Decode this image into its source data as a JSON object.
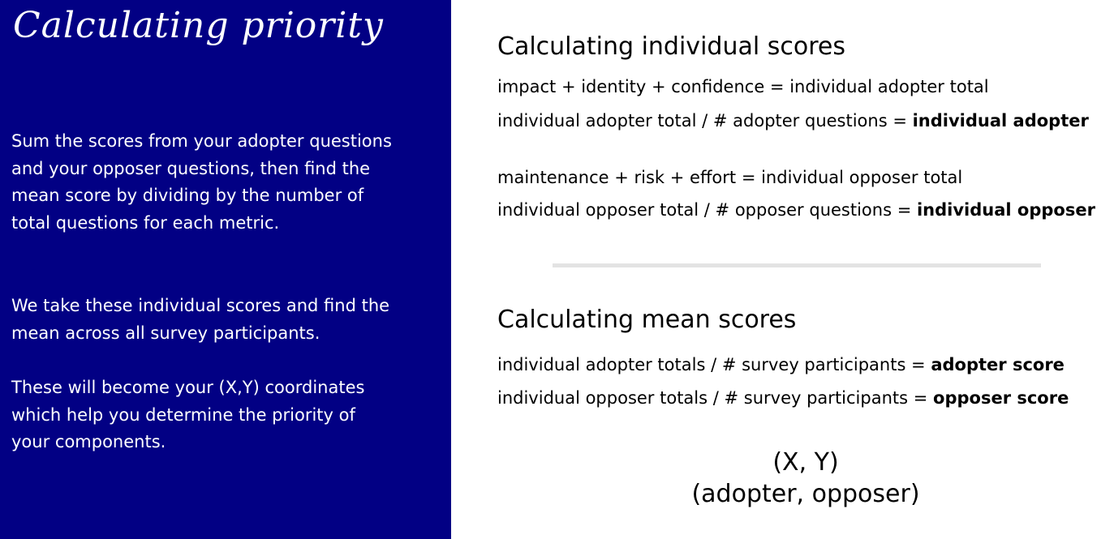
{
  "left_panel": {
    "title": "Calculating priority",
    "paragraphs": [
      "Sum the scores from your adopter questions and your opposer questions, then find the mean score by dividing by the number of total questions for each metric.",
      "We take these individual scores and find the mean across all survey participants.",
      "These will become your (X,Y) coordinates which help you determine the priority of your components."
    ]
  },
  "individual_scores": {
    "heading": "Calculating individual scores",
    "adopter_total_formula": "impact + identity + confidence = individual adopter total",
    "adopter_formula_prefix": "individual adopter total / # adopter questions = ",
    "adopter_formula_result": "individual adopter",
    "opposer_total_formula": "maintenance + risk + effort = individual opposer total",
    "opposer_formula_prefix": "individual opposer total / # opposer questions = ",
    "opposer_formula_result": "individual opposer"
  },
  "mean_scores": {
    "heading": "Calculating mean scores",
    "adopter_formula_prefix": "individual adopter totals / # survey participants = ",
    "adopter_formula_result": "adopter score",
    "opposer_formula_prefix": "individual opposer totals / # survey participants = ",
    "opposer_formula_result": "opposer score"
  },
  "coordinates": {
    "line_1": "(X, Y)",
    "line_2": "(adopter, opposer)"
  },
  "colors": {
    "left_panel_background": "#020084",
    "divider": "#e3e3e3"
  }
}
